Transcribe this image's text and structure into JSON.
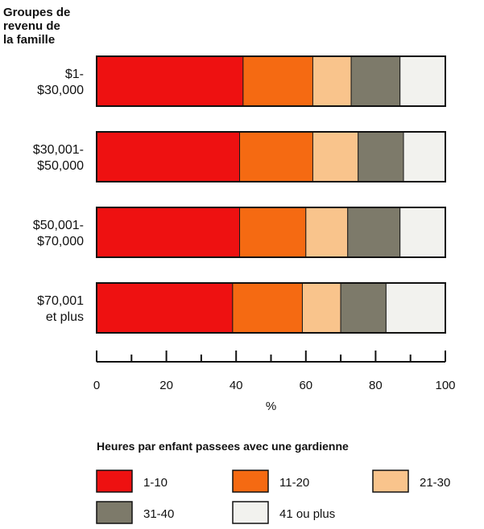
{
  "chart_data": {
    "type": "bar",
    "orientation": "horizontal",
    "stacked": true,
    "title": "",
    "ylabel": "Groupes de revenu de la famille",
    "ylabel_lines": [
      "Groupes de",
      "revenu de",
      "la famille"
    ],
    "xlabel": "%",
    "xlim": [
      0,
      100
    ],
    "xticks": [
      0,
      20,
      40,
      60,
      80,
      100
    ],
    "categories": [
      "$1-$30,000",
      "$30,001-$50,000",
      "$50,001-$70,000",
      "$70,001 et plus"
    ],
    "category_lines": [
      [
        "$1-",
        "$30,000"
      ],
      [
        "$30,001-",
        "$50,000"
      ],
      [
        "$50,001-",
        "$70,000"
      ],
      [
        "$70,001",
        "et plus"
      ]
    ],
    "series": [
      {
        "name": "1-10",
        "color": "#ee1111",
        "values": [
          42,
          41,
          41,
          39
        ]
      },
      {
        "name": "11-20",
        "color": "#f56a12",
        "values": [
          20,
          21,
          19,
          20
        ]
      },
      {
        "name": "21-30",
        "color": "#f9c48c",
        "values": [
          11,
          13,
          12,
          11
        ]
      },
      {
        "name": "31-40",
        "color": "#7d7a6a",
        "values": [
          14,
          13,
          15,
          13
        ]
      },
      {
        "name": "41 ou plus",
        "color": "#f2f2ee",
        "values": [
          13,
          12,
          13,
          17
        ]
      }
    ],
    "legend": {
      "title": "Heures par enfant passees avec une gardienne",
      "placement": "bottom"
    },
    "grid": false
  }
}
